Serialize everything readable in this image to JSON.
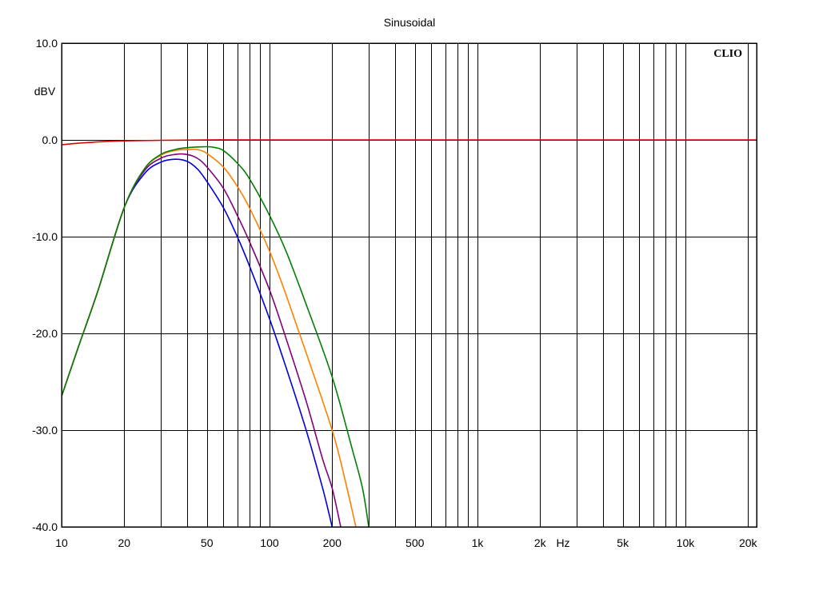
{
  "chart_data": {
    "type": "line",
    "title": "Sinusoidal",
    "brand": "CLIO",
    "ylabel": "dBV",
    "xlabel": "Hz",
    "x_scale": "log",
    "xlim": [
      10,
      22000
    ],
    "ylim": [
      -40,
      10
    ],
    "grid": true,
    "x_ticks": [
      {
        "value": 10,
        "label": "10"
      },
      {
        "value": 20,
        "label": "20"
      },
      {
        "value": 50,
        "label": "50"
      },
      {
        "value": 100,
        "label": "100"
      },
      {
        "value": 200,
        "label": "200"
      },
      {
        "value": 500,
        "label": "500"
      },
      {
        "value": 1000,
        "label": "1k"
      },
      {
        "value": 2000,
        "label": "2k"
      },
      {
        "value": 5000,
        "label": "5k"
      },
      {
        "value": 10000,
        "label": "10k"
      },
      {
        "value": 20000,
        "label": "20k"
      }
    ],
    "y_ticks": [
      {
        "value": 10,
        "label": "10.0"
      },
      {
        "value": 0,
        "label": "0.0"
      },
      {
        "value": -10,
        "label": "-10.0"
      },
      {
        "value": -20,
        "label": "-20.0"
      },
      {
        "value": -30,
        "label": "-30.0"
      },
      {
        "value": -40,
        "label": "-40.0"
      }
    ],
    "series": [
      {
        "color": "#dd0000",
        "points": [
          [
            10,
            -0.5
          ],
          [
            12,
            -0.35
          ],
          [
            15,
            -0.2
          ],
          [
            20,
            -0.1
          ],
          [
            30,
            -0.04
          ],
          [
            50,
            0
          ],
          [
            100,
            0
          ],
          [
            1000,
            0
          ],
          [
            10000,
            0
          ],
          [
            22000,
            0
          ]
        ]
      },
      {
        "color": "#0000dd",
        "points": [
          [
            10,
            -26.5
          ],
          [
            12,
            -21.5
          ],
          [
            15,
            -15.5
          ],
          [
            20,
            -7
          ],
          [
            25,
            -3.5
          ],
          [
            30,
            -2.3
          ],
          [
            35,
            -2
          ],
          [
            40,
            -2.2
          ],
          [
            45,
            -3
          ],
          [
            50,
            -4.3
          ],
          [
            60,
            -7
          ],
          [
            70,
            -10
          ],
          [
            80,
            -13
          ],
          [
            100,
            -18.5
          ],
          [
            120,
            -23.5
          ],
          [
            150,
            -30
          ],
          [
            180,
            -36
          ],
          [
            200,
            -40
          ]
        ]
      },
      {
        "color": "#800080",
        "points": [
          [
            10,
            -26.5
          ],
          [
            12,
            -21.5
          ],
          [
            15,
            -15.5
          ],
          [
            20,
            -7
          ],
          [
            25,
            -3.2
          ],
          [
            30,
            -1.9
          ],
          [
            35,
            -1.5
          ],
          [
            40,
            -1.5
          ],
          [
            45,
            -1.9
          ],
          [
            50,
            -2.8
          ],
          [
            60,
            -5
          ],
          [
            70,
            -7.8
          ],
          [
            80,
            -10.5
          ],
          [
            100,
            -15.5
          ],
          [
            120,
            -20.5
          ],
          [
            150,
            -27
          ],
          [
            180,
            -33
          ],
          [
            200,
            -36
          ],
          [
            220,
            -40
          ]
        ]
      },
      {
        "color": "#ff8000",
        "points": [
          [
            10,
            -26.5
          ],
          [
            12,
            -21.5
          ],
          [
            15,
            -15.5
          ],
          [
            20,
            -7
          ],
          [
            25,
            -3
          ],
          [
            30,
            -1.6
          ],
          [
            35,
            -1.1
          ],
          [
            40,
            -1
          ],
          [
            45,
            -1
          ],
          [
            50,
            -1.4
          ],
          [
            60,
            -2.8
          ],
          [
            70,
            -4.8
          ],
          [
            80,
            -7
          ],
          [
            100,
            -11.5
          ],
          [
            120,
            -16
          ],
          [
            150,
            -22
          ],
          [
            200,
            -30
          ],
          [
            230,
            -35
          ],
          [
            260,
            -40
          ]
        ]
      },
      {
        "color": "#008000",
        "points": [
          [
            10,
            -26.5
          ],
          [
            12,
            -21.5
          ],
          [
            15,
            -15.5
          ],
          [
            20,
            -7
          ],
          [
            25,
            -3
          ],
          [
            30,
            -1.5
          ],
          [
            35,
            -1
          ],
          [
            40,
            -0.8
          ],
          [
            50,
            -0.7
          ],
          [
            55,
            -0.8
          ],
          [
            60,
            -1.1
          ],
          [
            70,
            -2.4
          ],
          [
            80,
            -4
          ],
          [
            100,
            -7.8
          ],
          [
            120,
            -11.5
          ],
          [
            150,
            -17
          ],
          [
            200,
            -24.5
          ],
          [
            250,
            -32
          ],
          [
            280,
            -36
          ],
          [
            300,
            -40
          ]
        ]
      }
    ]
  }
}
